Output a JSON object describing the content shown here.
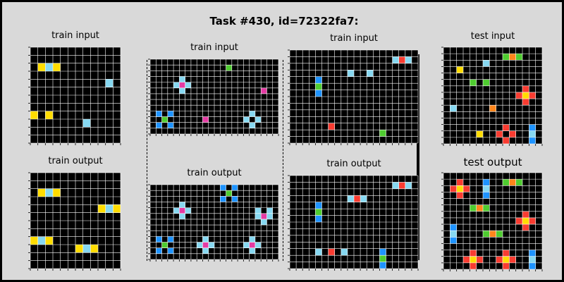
{
  "title": "Task #430, id=72322fa7:",
  "colors": {
    "0": "#000000",
    "1": "#1e93ff",
    "2": "#f93c31",
    "3": "#4fcc30",
    "4": "#ffdc00",
    "5": "#999999",
    "6": "#e53aa3",
    "7": "#ff851b",
    "8": "#87d8f1",
    "9": "#921231",
    "gridline": "#ffffff",
    "background": "#d9d9d9"
  },
  "panels": [
    {
      "title": "train input",
      "rows": 12,
      "cols": 12,
      "cells": [
        [
          2,
          1,
          4
        ],
        [
          2,
          2,
          8
        ],
        [
          2,
          3,
          4
        ],
        [
          4,
          10,
          8
        ],
        [
          8,
          0,
          4
        ],
        [
          8,
          2,
          4
        ],
        [
          9,
          7,
          8
        ]
      ]
    },
    {
      "title": "train output",
      "rows": 12,
      "cols": 12,
      "cells": [
        [
          2,
          1,
          4
        ],
        [
          2,
          2,
          8
        ],
        [
          2,
          3,
          4
        ],
        [
          4,
          9,
          4
        ],
        [
          4,
          10,
          8
        ],
        [
          4,
          11,
          4
        ],
        [
          8,
          0,
          4
        ],
        [
          8,
          1,
          8
        ],
        [
          8,
          2,
          4
        ],
        [
          9,
          6,
          4
        ],
        [
          9,
          7,
          8
        ],
        [
          9,
          8,
          4
        ]
      ]
    },
    {
      "title": "train input",
      "rows": 13,
      "cols": 22,
      "cells": [
        [
          1,
          13,
          3
        ],
        [
          3,
          5,
          8
        ],
        [
          4,
          4,
          8
        ],
        [
          4,
          5,
          6
        ],
        [
          4,
          6,
          8
        ],
        [
          5,
          5,
          8
        ],
        [
          5,
          19,
          6
        ],
        [
          9,
          1,
          1
        ],
        [
          9,
          3,
          1
        ],
        [
          10,
          2,
          3
        ],
        [
          10,
          9,
          6
        ],
        [
          10,
          16,
          8
        ],
        [
          10,
          18,
          8
        ],
        [
          11,
          1,
          1
        ],
        [
          11,
          3,
          1
        ],
        [
          9,
          17,
          8
        ],
        [
          11,
          17,
          8
        ]
      ]
    },
    {
      "title": "train output",
      "rows": 13,
      "cols": 22,
      "cells": [
        [
          0,
          12,
          1
        ],
        [
          0,
          14,
          1
        ],
        [
          1,
          13,
          3
        ],
        [
          2,
          12,
          1
        ],
        [
          2,
          14,
          1
        ],
        [
          3,
          5,
          8
        ],
        [
          4,
          4,
          8
        ],
        [
          4,
          5,
          6
        ],
        [
          4,
          6,
          8
        ],
        [
          5,
          5,
          8
        ],
        [
          4,
          18,
          8
        ],
        [
          5,
          19,
          6
        ],
        [
          5,
          20,
          8
        ],
        [
          4,
          20,
          8
        ],
        [
          6,
          19,
          8
        ],
        [
          5,
          18,
          8
        ],
        [
          9,
          1,
          1
        ],
        [
          9,
          3,
          1
        ],
        [
          10,
          2,
          3
        ],
        [
          11,
          1,
          1
        ],
        [
          11,
          3,
          1
        ],
        [
          9,
          9,
          8
        ],
        [
          10,
          8,
          8
        ],
        [
          10,
          9,
          6
        ],
        [
          10,
          10,
          8
        ],
        [
          11,
          9,
          8
        ],
        [
          9,
          17,
          8
        ],
        [
          10,
          16,
          8
        ],
        [
          10,
          17,
          6
        ],
        [
          10,
          18,
          8
        ],
        [
          11,
          17,
          8
        ]
      ]
    },
    {
      "title": "train input",
      "rows": 14,
      "cols": 20,
      "cells": [
        [
          1,
          16,
          8
        ],
        [
          1,
          17,
          2
        ],
        [
          1,
          18,
          8
        ],
        [
          3,
          9,
          8
        ],
        [
          3,
          12,
          8
        ],
        [
          4,
          4,
          1
        ],
        [
          5,
          4,
          3
        ],
        [
          6,
          4,
          1
        ],
        [
          11,
          6,
          2
        ],
        [
          12,
          14,
          3
        ]
      ]
    },
    {
      "title": "train output",
      "rows": 14,
      "cols": 20,
      "cells": [
        [
          1,
          16,
          8
        ],
        [
          1,
          17,
          2
        ],
        [
          1,
          18,
          8
        ],
        [
          3,
          9,
          8
        ],
        [
          3,
          10,
          2
        ],
        [
          3,
          11,
          8
        ],
        [
          4,
          4,
          1
        ],
        [
          5,
          4,
          3
        ],
        [
          6,
          4,
          1
        ],
        [
          11,
          4,
          8
        ],
        [
          11,
          6,
          2
        ],
        [
          11,
          8,
          8
        ],
        [
          11,
          14,
          1
        ],
        [
          12,
          14,
          3
        ],
        [
          13,
          14,
          1
        ]
      ]
    },
    {
      "title": "test input",
      "rows": 15,
      "cols": 15,
      "cells": [
        [
          1,
          9,
          3
        ],
        [
          1,
          10,
          7
        ],
        [
          1,
          11,
          3
        ],
        [
          2,
          6,
          8
        ],
        [
          3,
          2,
          4
        ],
        [
          5,
          4,
          3
        ],
        [
          5,
          6,
          3
        ],
        [
          6,
          12,
          2
        ],
        [
          7,
          11,
          2
        ],
        [
          7,
          12,
          4
        ],
        [
          7,
          13,
          2
        ],
        [
          8,
          12,
          2
        ],
        [
          9,
          1,
          8
        ],
        [
          9,
          7,
          7
        ],
        [
          13,
          5,
          4
        ],
        [
          13,
          8,
          2
        ],
        [
          12,
          9,
          2
        ],
        [
          13,
          10,
          2
        ],
        [
          14,
          9,
          2
        ],
        [
          12,
          13,
          1
        ],
        [
          13,
          13,
          8
        ],
        [
          14,
          13,
          1
        ]
      ]
    },
    {
      "title": "test output",
      "rows": 15,
      "cols": 15,
      "cells": [
        [
          1,
          2,
          2
        ],
        [
          2,
          1,
          2
        ],
        [
          2,
          2,
          4
        ],
        [
          2,
          3,
          2
        ],
        [
          3,
          2,
          2
        ],
        [
          1,
          6,
          1
        ],
        [
          2,
          6,
          8
        ],
        [
          3,
          6,
          1
        ],
        [
          1,
          9,
          3
        ],
        [
          1,
          10,
          7
        ],
        [
          1,
          11,
          3
        ],
        [
          5,
          4,
          3
        ],
        [
          5,
          5,
          7
        ],
        [
          5,
          6,
          3
        ],
        [
          6,
          12,
          2
        ],
        [
          7,
          11,
          2
        ],
        [
          7,
          12,
          4
        ],
        [
          7,
          13,
          2
        ],
        [
          8,
          12,
          2
        ],
        [
          8,
          1,
          1
        ],
        [
          9,
          1,
          8
        ],
        [
          10,
          1,
          1
        ],
        [
          9,
          6,
          3
        ],
        [
          9,
          7,
          7
        ],
        [
          9,
          8,
          3
        ],
        [
          12,
          4,
          2
        ],
        [
          13,
          3,
          2
        ],
        [
          13,
          4,
          4
        ],
        [
          13,
          5,
          2
        ],
        [
          14,
          4,
          2
        ],
        [
          12,
          9,
          2
        ],
        [
          13,
          8,
          2
        ],
        [
          13,
          9,
          4
        ],
        [
          13,
          10,
          2
        ],
        [
          14,
          9,
          2
        ],
        [
          12,
          13,
          1
        ],
        [
          13,
          13,
          8
        ],
        [
          14,
          13,
          1
        ]
      ]
    }
  ]
}
